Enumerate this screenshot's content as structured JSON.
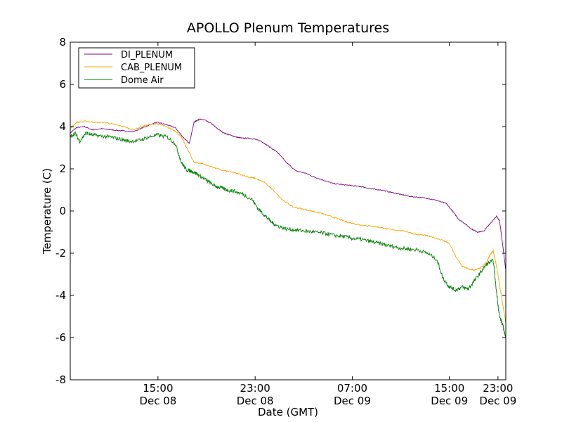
{
  "chart_data": {
    "type": "line",
    "title": "APOLLO Plenum Temperatures",
    "xlabel": "Date (GMT)",
    "ylabel": "Temperature (C)",
    "xlim": [
      11.0,
      24.9
    ],
    "ylim": [
      -8,
      8
    ],
    "y_ticks": [
      -8,
      -6,
      -4,
      -2,
      0,
      2,
      4,
      6,
      8
    ],
    "x_ticks": [
      {
        "value": 13.8,
        "time": "15:00",
        "date": "Dec 08"
      },
      {
        "value": 16.9,
        "time": "23:00",
        "date": "Dec 08"
      },
      {
        "value": 20.0,
        "time": "07:00",
        "date": "Dec 09"
      },
      {
        "value": 23.1,
        "time": "15:00",
        "date": "Dec 09"
      },
      {
        "value": 24.65,
        "time": "23:00",
        "date": "Dec 09"
      }
    ],
    "legend_position": "top-left",
    "series": [
      {
        "name": "DI_PLENUM",
        "color": "#800080",
        "x": [
          11.0,
          11.2,
          11.45,
          11.7,
          12.0,
          12.3,
          12.65,
          13.0,
          13.4,
          13.75,
          14.05,
          14.35,
          14.6,
          14.8,
          14.95,
          15.05,
          15.15,
          15.3,
          15.5,
          15.7,
          15.9,
          16.1,
          16.3,
          16.5,
          16.7,
          16.9,
          17.1,
          17.3,
          17.6,
          17.9,
          18.2,
          18.5,
          18.8,
          19.1,
          19.4,
          19.7,
          20.0,
          20.3,
          20.6,
          20.9,
          21.2,
          21.5,
          21.8,
          22.1,
          22.4,
          22.7,
          23.0,
          23.2,
          23.4,
          23.6,
          23.8,
          24.0,
          24.2,
          24.4,
          24.6,
          24.7,
          24.8,
          24.9
        ],
        "y": [
          3.7,
          3.95,
          4.0,
          3.85,
          3.9,
          3.85,
          3.8,
          3.75,
          4.0,
          4.2,
          4.1,
          3.95,
          3.5,
          3.2,
          4.2,
          4.3,
          4.35,
          4.3,
          4.15,
          3.9,
          3.7,
          3.6,
          3.5,
          3.45,
          3.45,
          3.4,
          3.3,
          3.1,
          2.8,
          2.3,
          1.9,
          1.8,
          1.6,
          1.45,
          1.3,
          1.25,
          1.2,
          1.15,
          1.05,
          1.0,
          0.9,
          0.8,
          0.7,
          0.65,
          0.6,
          0.5,
          0.35,
          0.0,
          -0.4,
          -0.6,
          -0.85,
          -1.0,
          -0.95,
          -0.6,
          -0.25,
          -0.45,
          -1.6,
          -2.8
        ]
      },
      {
        "name": "CAB_PLENUM",
        "color": "#FFA500",
        "x": [
          11.0,
          11.2,
          11.5,
          11.8,
          12.1,
          12.4,
          12.7,
          13.0,
          13.4,
          13.75,
          14.05,
          14.35,
          14.55,
          14.75,
          14.95,
          15.2,
          15.5,
          15.8,
          16.1,
          16.4,
          16.7,
          16.9,
          17.2,
          17.5,
          17.8,
          18.1,
          18.4,
          18.7,
          19.0,
          19.3,
          19.6,
          19.9,
          20.2,
          20.5,
          20.8,
          21.1,
          21.4,
          21.7,
          22.0,
          22.3,
          22.6,
          22.9,
          23.1,
          23.3,
          23.5,
          23.7,
          23.9,
          24.1,
          24.3,
          24.4,
          24.5,
          24.6,
          24.7,
          24.8,
          24.9
        ],
        "y": [
          3.9,
          4.2,
          4.25,
          4.2,
          4.2,
          4.1,
          4.0,
          3.85,
          4.05,
          4.15,
          4.0,
          3.8,
          3.5,
          2.9,
          2.3,
          2.25,
          2.1,
          1.95,
          1.85,
          1.75,
          1.6,
          1.55,
          1.35,
          0.95,
          0.5,
          0.2,
          0.1,
          0.0,
          -0.1,
          -0.25,
          -0.4,
          -0.55,
          -0.65,
          -0.7,
          -0.75,
          -0.85,
          -0.9,
          -0.95,
          -1.1,
          -1.15,
          -1.25,
          -1.4,
          -1.55,
          -2.15,
          -2.6,
          -2.75,
          -2.8,
          -2.7,
          -2.4,
          -2.05,
          -1.9,
          -2.6,
          -3.5,
          -4.4,
          -5.3
        ]
      },
      {
        "name": "Dome Air",
        "color": "#008000",
        "x": [
          11.0,
          11.15,
          11.3,
          11.5,
          11.7,
          12.0,
          12.3,
          12.6,
          12.9,
          13.2,
          13.5,
          13.8,
          14.1,
          14.35,
          14.55,
          14.7,
          14.85,
          15.0,
          15.2,
          15.4,
          15.6,
          15.8,
          16.0,
          16.2,
          16.5,
          16.8,
          17.0,
          17.2,
          17.4,
          17.6,
          17.9,
          18.2,
          18.5,
          18.8,
          19.1,
          19.4,
          19.7,
          20.0,
          20.3,
          20.6,
          20.9,
          21.2,
          21.5,
          21.8,
          22.1,
          22.4,
          22.7,
          22.9,
          23.1,
          23.3,
          23.5,
          23.7,
          23.9,
          24.1,
          24.3,
          24.5,
          24.6,
          24.7,
          24.8,
          24.9
        ],
        "y": [
          3.5,
          3.7,
          3.3,
          3.7,
          3.6,
          3.55,
          3.5,
          3.4,
          3.3,
          3.35,
          3.5,
          3.6,
          3.5,
          3.2,
          2.3,
          1.95,
          1.9,
          1.8,
          1.6,
          1.4,
          1.2,
          1.1,
          1.0,
          0.95,
          0.8,
          0.55,
          0.1,
          -0.2,
          -0.5,
          -0.7,
          -0.85,
          -0.9,
          -0.95,
          -1.0,
          -1.05,
          -1.15,
          -1.2,
          -1.3,
          -1.35,
          -1.45,
          -1.55,
          -1.65,
          -1.75,
          -1.8,
          -1.85,
          -2.0,
          -2.3,
          -3.2,
          -3.6,
          -3.75,
          -3.6,
          -3.7,
          -3.3,
          -2.9,
          -2.5,
          -2.35,
          -3.8,
          -5.0,
          -5.4,
          -6.0
        ]
      }
    ]
  }
}
